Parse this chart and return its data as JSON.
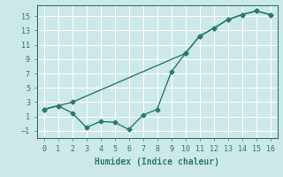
{
  "xlabel": "Humidex (Indice chaleur)",
  "line1_x": [
    0,
    1,
    2,
    3,
    4,
    5,
    6,
    7,
    8,
    9,
    10,
    11,
    12,
    13,
    14,
    15,
    16
  ],
  "line1_y": [
    2,
    2.5,
    1.5,
    -0.5,
    0.3,
    0.2,
    -0.8,
    1.2,
    2,
    7.2,
    9.8,
    12.2,
    13.3,
    14.5,
    15.2,
    15.7,
    15.2
  ],
  "line2_x": [
    0,
    1,
    2,
    10,
    11,
    12,
    13,
    14,
    15,
    16
  ],
  "line2_y": [
    2,
    2.5,
    3.0,
    9.8,
    12.2,
    13.3,
    14.5,
    15.2,
    15.7,
    15.2
  ],
  "line_color": "#2a7a6a",
  "bg_color": "#cce8e8",
  "grid_color": "#aad4d4",
  "xlim": [
    -0.5,
    16.5
  ],
  "ylim": [
    -2.0,
    16.5
  ],
  "xticks": [
    0,
    1,
    2,
    3,
    4,
    5,
    6,
    7,
    8,
    9,
    10,
    11,
    12,
    13,
    14,
    15,
    16
  ],
  "yticks": [
    -1,
    1,
    3,
    5,
    7,
    9,
    11,
    13,
    15
  ],
  "xlabel_fontsize": 7,
  "tick_fontsize": 6
}
